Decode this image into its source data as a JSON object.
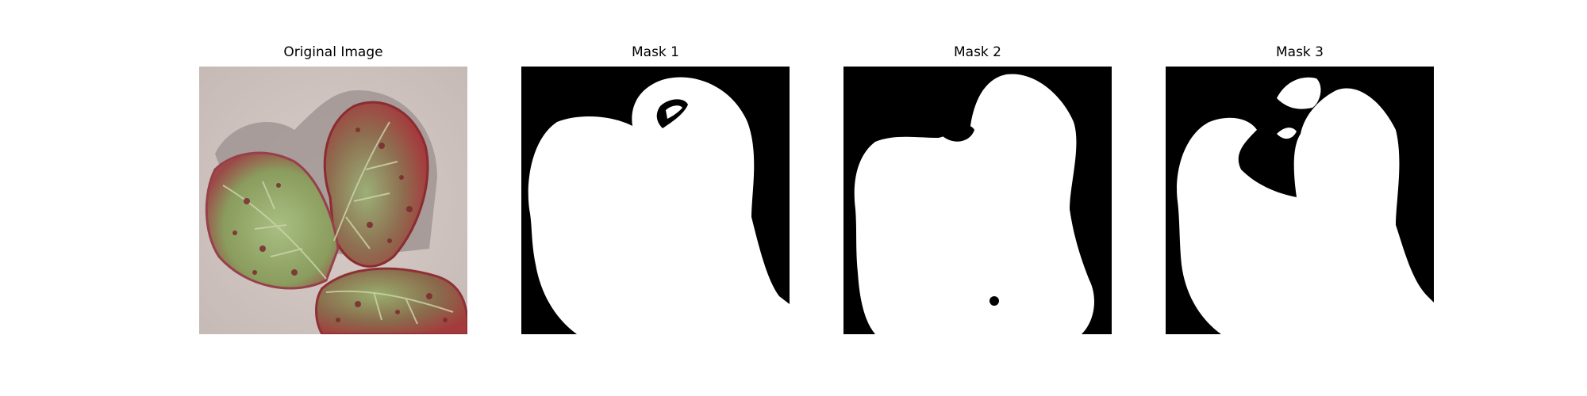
{
  "figure": {
    "panels": [
      {
        "title": "Original Image",
        "kind": "photo",
        "subject": "strawberry-leaf"
      },
      {
        "title": "Mask 1",
        "kind": "mask"
      },
      {
        "title": "Mask 2",
        "kind": "mask"
      },
      {
        "title": "Mask 3",
        "kind": "mask"
      }
    ],
    "colors": {
      "mask_background": "#000000",
      "mask_foreground": "#ffffff",
      "photo_background": "#cfc4c0",
      "leaf_green": "#8fa86a",
      "leaf_red": "#a8333a",
      "shadow": "#8f8585"
    }
  }
}
